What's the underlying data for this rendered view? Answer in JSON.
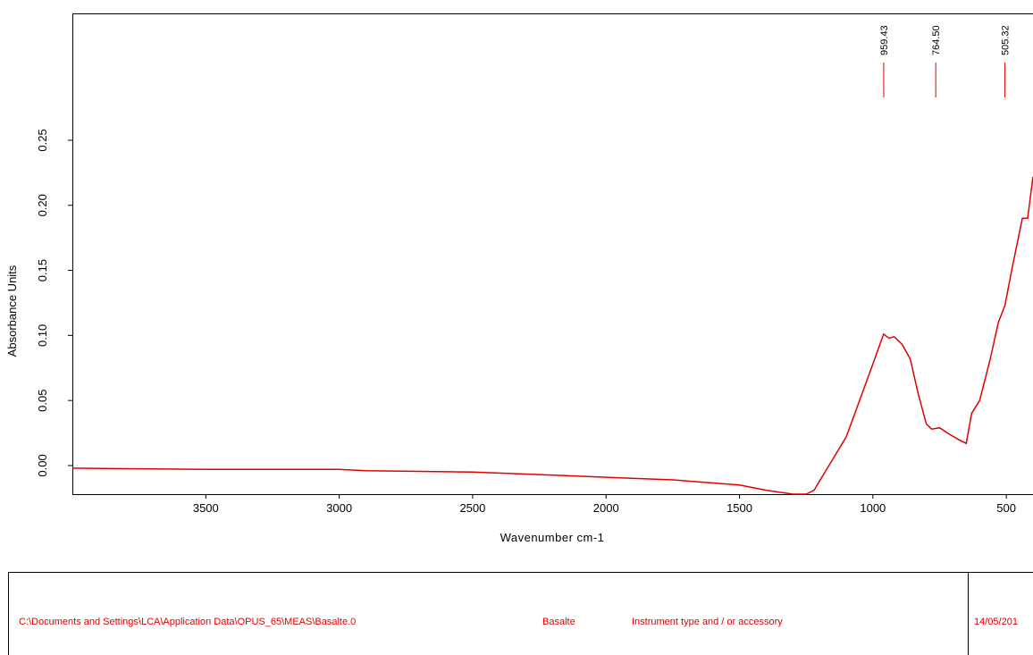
{
  "chart_data": {
    "type": "line",
    "x_label": "Wavenumber cm-1",
    "y_label": "Absorbance Units",
    "color": "#e00000",
    "x": [
      4000,
      3500,
      3000,
      2900,
      2500,
      2000,
      1750,
      1500,
      1400,
      1300,
      1250,
      1220,
      1200,
      1150,
      1100,
      1050,
      1000,
      960,
      940,
      920,
      890,
      860,
      830,
      800,
      780,
      750,
      720,
      680,
      650,
      630,
      600,
      560,
      530,
      505,
      480,
      460,
      440,
      420,
      400
    ],
    "values": [
      -0.002,
      -0.003,
      -0.003,
      -0.004,
      -0.005,
      -0.009,
      -0.011,
      -0.015,
      -0.019,
      -0.022,
      -0.022,
      -0.019,
      -0.012,
      0.005,
      0.022,
      0.05,
      0.078,
      0.101,
      0.098,
      0.099,
      0.093,
      0.082,
      0.055,
      0.032,
      0.028,
      0.029,
      0.025,
      0.02,
      0.017,
      0.04,
      0.05,
      0.082,
      0.11,
      0.123,
      0.15,
      0.17,
      0.19,
      0.19,
      0.222
    ],
    "xlim": [
      4000,
      400
    ],
    "ylim": [
      -0.022,
      0.3475
    ],
    "xticks": [
      3500,
      3000,
      2500,
      2000,
      1500,
      1000,
      500
    ],
    "yticks": [
      {
        "value": 0,
        "label": "0.00"
      },
      {
        "value": 0.05,
        "label": "0.05"
      },
      {
        "value": 0.1,
        "label": "0.10"
      },
      {
        "value": 0.15,
        "label": "0.15"
      },
      {
        "value": 0.2,
        "label": "0.20"
      },
      {
        "value": 0.25,
        "label": "0.25"
      }
    ],
    "peaks": [
      {
        "value": 959.43,
        "label": "959.43"
      },
      {
        "value": 764.5,
        "label": "764.50"
      },
      {
        "value": 505.32,
        "label": "505.32"
      }
    ]
  },
  "footer": {
    "path": "C:\\Documents and Settings\\LCA\\Application Data\\OPUS_65\\MEAS\\Basalte.0",
    "sample": "Basalte",
    "instrument": "Instrument type and / or accessory",
    "date": "14/05/201"
  }
}
